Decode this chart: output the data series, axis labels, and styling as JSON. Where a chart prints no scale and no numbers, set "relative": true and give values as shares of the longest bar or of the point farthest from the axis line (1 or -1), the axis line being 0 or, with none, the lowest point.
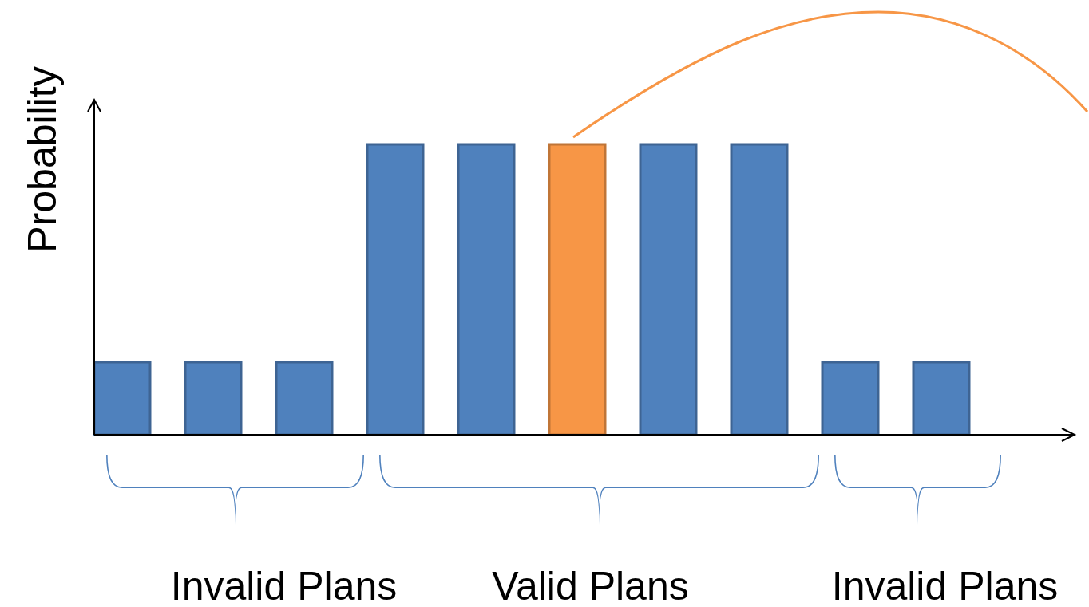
{
  "chart_data": {
    "type": "bar",
    "relative": true,
    "ylabel": "Probability",
    "categories": [
      null,
      null,
      null,
      null,
      null,
      null,
      null,
      null,
      null,
      null
    ],
    "values": [
      0.25,
      0.25,
      0.25,
      1,
      1,
      1,
      1,
      1,
      0.25,
      0.25
    ],
    "colors": [
      "#4f81bd",
      "#4f81bd",
      "#4f81bd",
      "#4f81bd",
      "#4f81bd",
      "#f79646",
      "#4f81bd",
      "#4f81bd",
      "#4f81bd",
      "#4f81bd"
    ],
    "annotations": [
      "Invalid Plans",
      "Valid Plans",
      "Invalid Plans"
    ]
  }
}
